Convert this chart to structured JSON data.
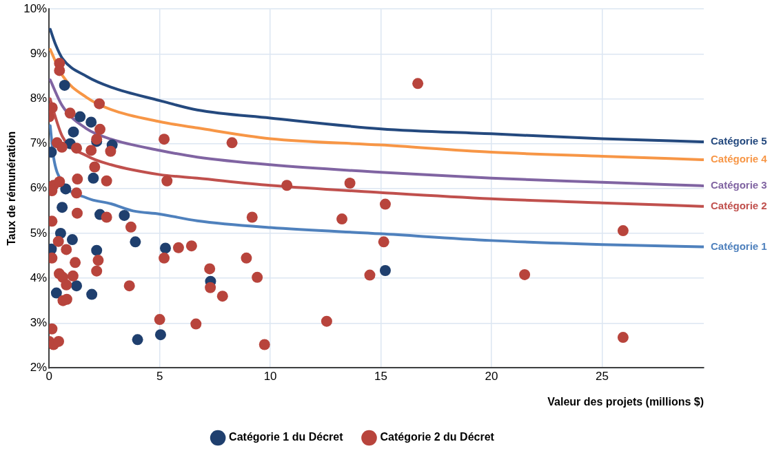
{
  "chart_data": {
    "type": "scatter",
    "xlabel": "Valeur des projets (millions $)",
    "ylabel": "Taux de rémunération",
    "xlim": [
      0,
      29.6
    ],
    "xticks": [
      0,
      5,
      10,
      15,
      20,
      25
    ],
    "ylim": [
      2,
      10
    ],
    "yticks": [
      {
        "value": 2,
        "label": "2%"
      },
      {
        "value": 3,
        "label": "3%"
      },
      {
        "value": 4,
        "label": "4%"
      },
      {
        "value": 5,
        "label": "5%"
      },
      {
        "value": 6,
        "label": "6%"
      },
      {
        "value": 7,
        "label": "7%"
      },
      {
        "value": 8,
        "label": "8%"
      },
      {
        "value": 9,
        "label": "9%"
      },
      {
        "value": 10,
        "label": "10%"
      }
    ],
    "grid": true,
    "legend": "bottom",
    "series": [
      {
        "name": "Catégorie 1 du Décret",
        "type": "scatter",
        "marker": "circle",
        "color": "#1f3f6e",
        "x": [
          0.7,
          0.1,
          1.4,
          1.9,
          1.1,
          2.85,
          0.95,
          2.0,
          2.15,
          0.75,
          0.59,
          2.3,
          3.4,
          0.52,
          1.05,
          0.1,
          2.15,
          3.9,
          5.26,
          1.24,
          0.33,
          1.93,
          4.0,
          5.04,
          7.3,
          15.2
        ],
        "values": [
          8.3,
          6.81,
          7.6,
          7.48,
          7.26,
          6.97,
          7.0,
          6.23,
          7.05,
          5.99,
          5.58,
          5.42,
          5.4,
          5.0,
          4.86,
          4.65,
          4.62,
          4.81,
          4.67,
          3.83,
          3.67,
          3.64,
          2.63,
          2.74,
          3.93,
          4.17
        ]
      },
      {
        "name": "Catégorie 2 du Décret",
        "type": "scatter",
        "marker": "circle",
        "color": "#b8443c",
        "x": [
          0.47,
          0.47,
          2.27,
          0.14,
          0.0,
          0.95,
          2.3,
          2.15,
          0.36,
          0.58,
          1.24,
          1.9,
          2.78,
          2.06,
          5.2,
          5.33,
          0.2,
          0.47,
          1.28,
          0.13,
          2.6,
          1.24,
          1.27,
          0.13,
          2.6,
          3.7,
          0.42,
          0.78,
          0.13,
          1.18,
          2.22,
          2.15,
          0.46,
          0.62,
          1.08,
          0.78,
          3.63,
          0.63,
          0.8,
          5.85,
          6.44,
          5.2,
          5.0,
          0.13,
          0.0,
          0.2,
          0.43,
          16.67,
          8.27,
          10.75,
          13.6,
          15.2,
          9.18,
          13.24,
          15.13,
          8.92,
          7.26,
          9.41,
          14.5,
          7.29,
          7.84,
          6.64,
          12.55,
          9.74,
          25.95,
          21.5,
          25.95
        ],
        "values": [
          8.79,
          8.63,
          7.89,
          7.8,
          7.6,
          7.68,
          7.32,
          7.1,
          7.02,
          6.92,
          6.9,
          6.85,
          6.83,
          6.48,
          7.1,
          6.17,
          6.07,
          6.15,
          6.21,
          5.95,
          6.17,
          5.9,
          5.45,
          5.27,
          5.36,
          5.14,
          4.82,
          4.64,
          4.45,
          4.35,
          4.4,
          4.16,
          4.1,
          4.02,
          4.05,
          3.85,
          3.83,
          3.5,
          3.53,
          4.68,
          4.72,
          4.45,
          3.08,
          2.87,
          2.59,
          2.52,
          2.59,
          8.34,
          7.02,
          6.07,
          6.12,
          5.65,
          5.36,
          5.32,
          4.81,
          4.45,
          4.21,
          4.02,
          4.07,
          3.79,
          3.6,
          2.98,
          3.04,
          2.52,
          5.06,
          4.08,
          2.68
        ]
      },
      {
        "name": "Catégorie 1",
        "type": "line",
        "marker": "none",
        "color": "#4f81bd",
        "x": [
          0.05,
          0.2,
          0.6,
          1.7,
          2.8,
          3.8,
          5,
          6.7,
          10,
          15,
          20,
          25,
          29.6
        ],
        "values": [
          7.4,
          6.7,
          6.15,
          5.79,
          5.66,
          5.5,
          5.43,
          5.28,
          5.13,
          4.99,
          4.84,
          4.75,
          4.7
        ]
      },
      {
        "name": "Catégorie 2",
        "type": "line",
        "marker": "none",
        "color": "#c0504d",
        "x": [
          0.05,
          0.2,
          0.6,
          1.7,
          2.8,
          5,
          6.7,
          10,
          15,
          20,
          25,
          29.6
        ],
        "values": [
          8.0,
          7.73,
          7.16,
          6.73,
          6.53,
          6.31,
          6.23,
          6.07,
          5.91,
          5.77,
          5.68,
          5.6
        ]
      },
      {
        "name": "Catégorie 3",
        "type": "line",
        "marker": "none",
        "color": "#8064a2",
        "x": [
          0.05,
          0.6,
          1.7,
          2.8,
          5,
          6.7,
          10,
          15,
          20,
          25,
          29.6
        ],
        "values": [
          8.42,
          7.84,
          7.33,
          7.1,
          6.85,
          6.7,
          6.53,
          6.36,
          6.23,
          6.14,
          6.06
        ]
      },
      {
        "name": "Catégorie 4",
        "type": "line",
        "marker": "none",
        "color": "#f79646",
        "x": [
          0.05,
          0.6,
          1.7,
          2.8,
          5,
          6.7,
          10,
          15,
          20,
          25,
          29.6
        ],
        "values": [
          9.1,
          8.52,
          8.03,
          7.76,
          7.49,
          7.35,
          7.11,
          6.97,
          6.81,
          6.72,
          6.64
        ]
      },
      {
        "name": "Catégorie 5",
        "type": "line",
        "marker": "none",
        "color": "#24497e",
        "x": [
          0.05,
          0.3,
          0.6,
          1.7,
          2.8,
          5,
          6.7,
          10,
          15,
          20,
          25,
          29.6
        ],
        "values": [
          9.55,
          9.2,
          8.9,
          8.5,
          8.26,
          7.96,
          7.75,
          7.57,
          7.33,
          7.22,
          7.11,
          7.04
        ]
      }
    ]
  }
}
